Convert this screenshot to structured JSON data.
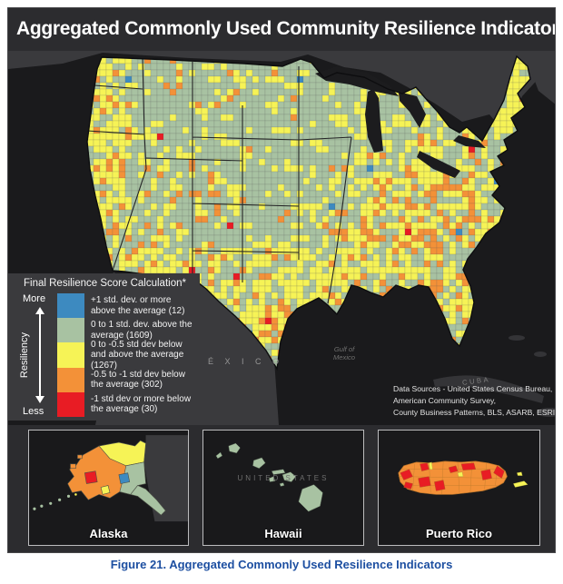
{
  "title": "Aggregated Commonly Used Community Resilience Indicators",
  "caption": "Figure 21. Aggregated Commonly Used Resilience Indicators",
  "legend": {
    "title": "Final Resilience Score Calculation*",
    "axis_top": "More",
    "axis_bottom": "Less",
    "axis_label": "Resiliency",
    "items": [
      {
        "label": "+1 std. dev. or more above the average (12)",
        "count": 12,
        "color": "#3d8ac0"
      },
      {
        "label": "0 to 1 std. dev. above the average (1609)",
        "count": 1609,
        "color": "#a8c2a2"
      },
      {
        "label": "0 to -0.5 std dev below and above the average (1267)",
        "count": 1267,
        "color": "#f6f356"
      },
      {
        "label": "-0.5 to -1 std dev below the average (302)",
        "count": 302,
        "color": "#f39138"
      },
      {
        "label": "-1 std dev or more below the average (30)",
        "count": 30,
        "color": "#e81c24"
      }
    ]
  },
  "sources": {
    "line1": "Data Sources - United States Census Bureau,",
    "line2": "American Community Survey,",
    "line3": "County Business Patterns, BLS, ASARB, ESRI"
  },
  "map_labels": {
    "mexico": "M É X I C O",
    "gulf_line1": "Gulf of",
    "gulf_line2": "Mexico",
    "cuba": "CUBA",
    "united_states": "UNITED STATES"
  },
  "insets": [
    {
      "label": "Alaska"
    },
    {
      "label": "Hawaii"
    },
    {
      "label": "Puerto Rico"
    }
  ],
  "palette": {
    "blue": "#3d8ac0",
    "green": "#a8c2a2",
    "yellow": "#f6f356",
    "orange": "#f39138",
    "red": "#e81c24",
    "ocean": "#1a1a1c",
    "neighbor_land": "#3a3a3d",
    "panel": "#2c2c2f",
    "legend_bg": "#3a3a3d",
    "caption_blue": "#1d4fa1",
    "inset_border": "#bcbcbe"
  },
  "chart_data": {
    "type": "heatmap",
    "subtype": "county-choropleth-map",
    "title": "Aggregated Commonly Used Community Resilience Indicators",
    "unit": "U.S. counties by final resilience score (standard deviations from average)",
    "categories": [
      "+1 std. dev. or more above the average",
      "0 to 1 std. dev. above the average",
      "0 to -0.5 std dev below and above the average",
      "-0.5 to -1 std dev below the average",
      "-1 std dev or more below the average"
    ],
    "values": [
      12,
      1609,
      1267,
      302,
      30
    ],
    "colors": [
      "#3d8ac0",
      "#a8c2a2",
      "#f6f356",
      "#f39138",
      "#e81c24"
    ],
    "scale_direction": "More resiliency (blue) to Less resiliency (red)",
    "regions_shown": [
      "Contiguous United States",
      "Alaska",
      "Hawaii",
      "Puerto Rico"
    ],
    "legend_position": "bottom-left"
  }
}
